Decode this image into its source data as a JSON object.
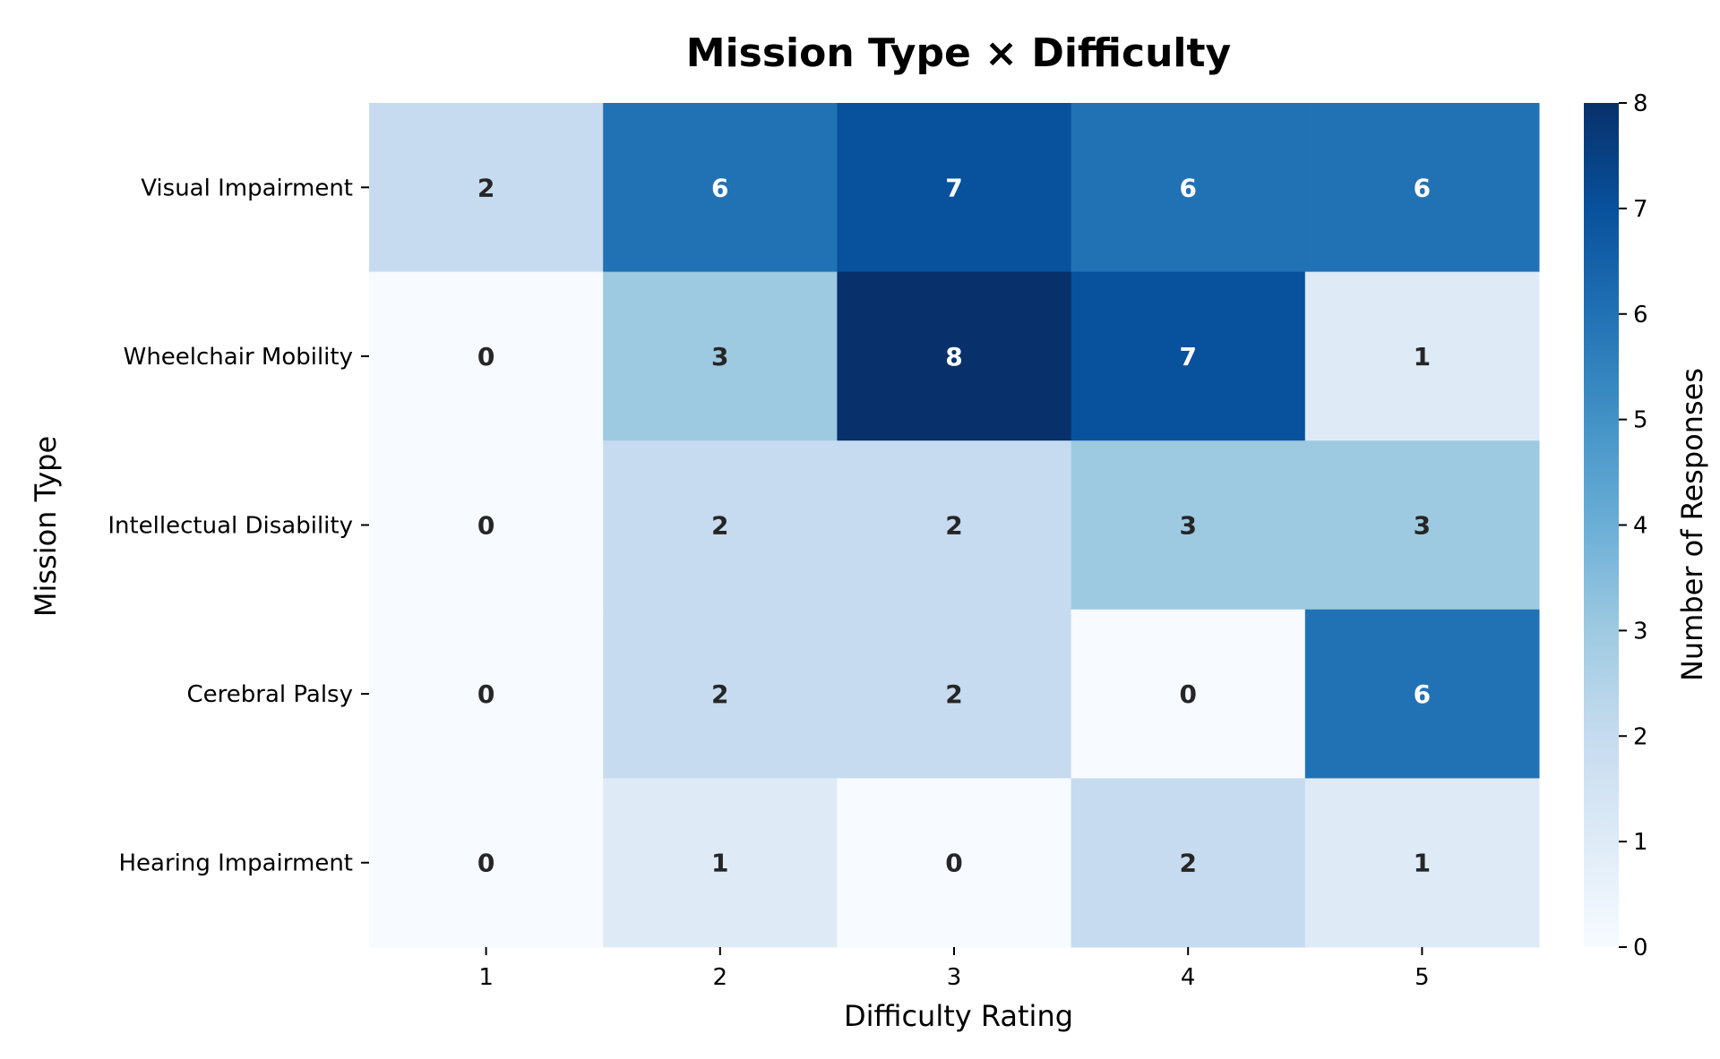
{
  "chart_data": {
    "type": "heatmap",
    "title": "Mission Type × Difficulty",
    "xlabel": "Difficulty Rating",
    "ylabel": "Mission Type",
    "x_categories": [
      "1",
      "2",
      "3",
      "4",
      "5"
    ],
    "y_categories": [
      "Visual Impairment",
      "Wheelchair Mobility",
      "Intellectual Disability",
      "Cerebral Palsy",
      "Hearing Impairment"
    ],
    "values": [
      [
        2,
        6,
        7,
        6,
        6
      ],
      [
        0,
        3,
        8,
        7,
        1
      ],
      [
        0,
        2,
        2,
        3,
        3
      ],
      [
        0,
        2,
        2,
        0,
        6
      ],
      [
        0,
        1,
        0,
        2,
        1
      ]
    ],
    "colorbar": {
      "label": "Number of Responses",
      "min": 0,
      "max": 8,
      "ticks": [
        "0",
        "1",
        "2",
        "3",
        "4",
        "5",
        "6",
        "7",
        "8"
      ],
      "colormap": "Blues"
    },
    "annotation_colors": {
      "light_cells": "#262626",
      "dark_cells": "#ffffff"
    }
  }
}
